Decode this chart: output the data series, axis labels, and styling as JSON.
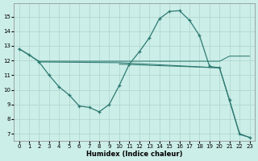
{
  "xlabel": "Humidex (Indice chaleur)",
  "background_color": "#cceee8",
  "grid_color": "#b0d8d0",
  "line_color": "#2d7a72",
  "ylim": [
    6.5,
    15.9
  ],
  "xlim": [
    -0.5,
    23.5
  ],
  "yticks": [
    7,
    8,
    9,
    10,
    11,
    12,
    13,
    14,
    15
  ],
  "xticks": [
    0,
    1,
    2,
    3,
    4,
    5,
    6,
    7,
    8,
    9,
    10,
    11,
    12,
    13,
    14,
    15,
    16,
    17,
    18,
    19,
    20,
    21,
    22,
    23
  ],
  "line1_x": [
    0,
    1,
    2,
    3,
    4,
    5,
    6,
    7,
    8,
    9,
    10,
    11,
    12,
    13,
    14,
    15,
    16,
    17,
    18,
    19,
    20,
    21,
    22,
    23
  ],
  "line1_y": [
    12.8,
    12.4,
    11.9,
    11.0,
    10.2,
    9.65,
    8.9,
    8.8,
    8.5,
    9.0,
    10.3,
    11.75,
    12.6,
    13.55,
    14.85,
    15.35,
    15.4,
    14.75,
    13.7,
    11.6,
    11.5,
    9.3,
    7.0,
    6.75
  ],
  "line2_x": [
    0,
    2,
    10,
    20,
    21,
    23
  ],
  "line2_y": [
    12.8,
    11.95,
    11.95,
    11.95,
    12.3,
    12.3
  ],
  "line3_x": [
    2,
    10,
    20,
    22,
    23
  ],
  "line3_y": [
    11.9,
    11.85,
    11.5,
    6.95,
    6.75
  ],
  "line4_x": [
    10,
    20
  ],
  "line4_y": [
    11.75,
    11.5
  ]
}
